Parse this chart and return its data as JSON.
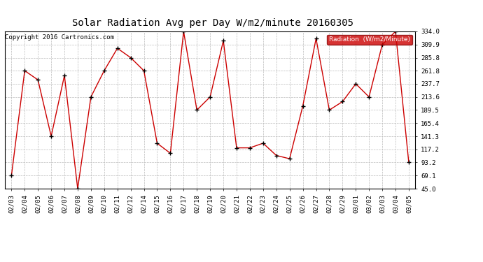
{
  "title": "Solar Radiation Avg per Day W/m2/minute 20160305",
  "copyright": "Copyright 2016 Cartronics.com",
  "legend_label": "Radiation  (W/m2/Minute)",
  "dates": [
    "02/03",
    "02/04",
    "02/05",
    "02/06",
    "02/07",
    "02/08",
    "02/09",
    "02/10",
    "02/11",
    "02/12",
    "02/14",
    "02/15",
    "02/16",
    "02/17",
    "02/18",
    "02/19",
    "02/20",
    "02/21",
    "02/22",
    "02/23",
    "02/24",
    "02/25",
    "02/26",
    "02/27",
    "02/28",
    "02/29",
    "03/01",
    "03/02",
    "03/03",
    "03/04",
    "03/05"
  ],
  "values": [
    69.1,
    261.8,
    245.0,
    141.3,
    253.0,
    45.0,
    213.6,
    261.8,
    303.0,
    285.8,
    261.8,
    128.5,
    110.0,
    334.0,
    189.5,
    213.6,
    317.0,
    120.0,
    120.0,
    128.5,
    106.0,
    100.0,
    197.0,
    321.0,
    189.5,
    205.0,
    237.7,
    213.6,
    309.9,
    334.0,
    93.2
  ],
  "ylim": [
    45.0,
    334.0
  ],
  "yticks": [
    45.0,
    69.1,
    93.2,
    117.2,
    141.3,
    165.4,
    189.5,
    213.6,
    237.7,
    261.8,
    285.8,
    309.9,
    334.0
  ],
  "line_color": "#cc0000",
  "marker_color": "#000000",
  "bg_color": "#ffffff",
  "grid_color": "#bbbbbb",
  "title_fontsize": 10,
  "copyright_fontsize": 6.5,
  "legend_bg": "#cc0000",
  "legend_fg": "#ffffff"
}
